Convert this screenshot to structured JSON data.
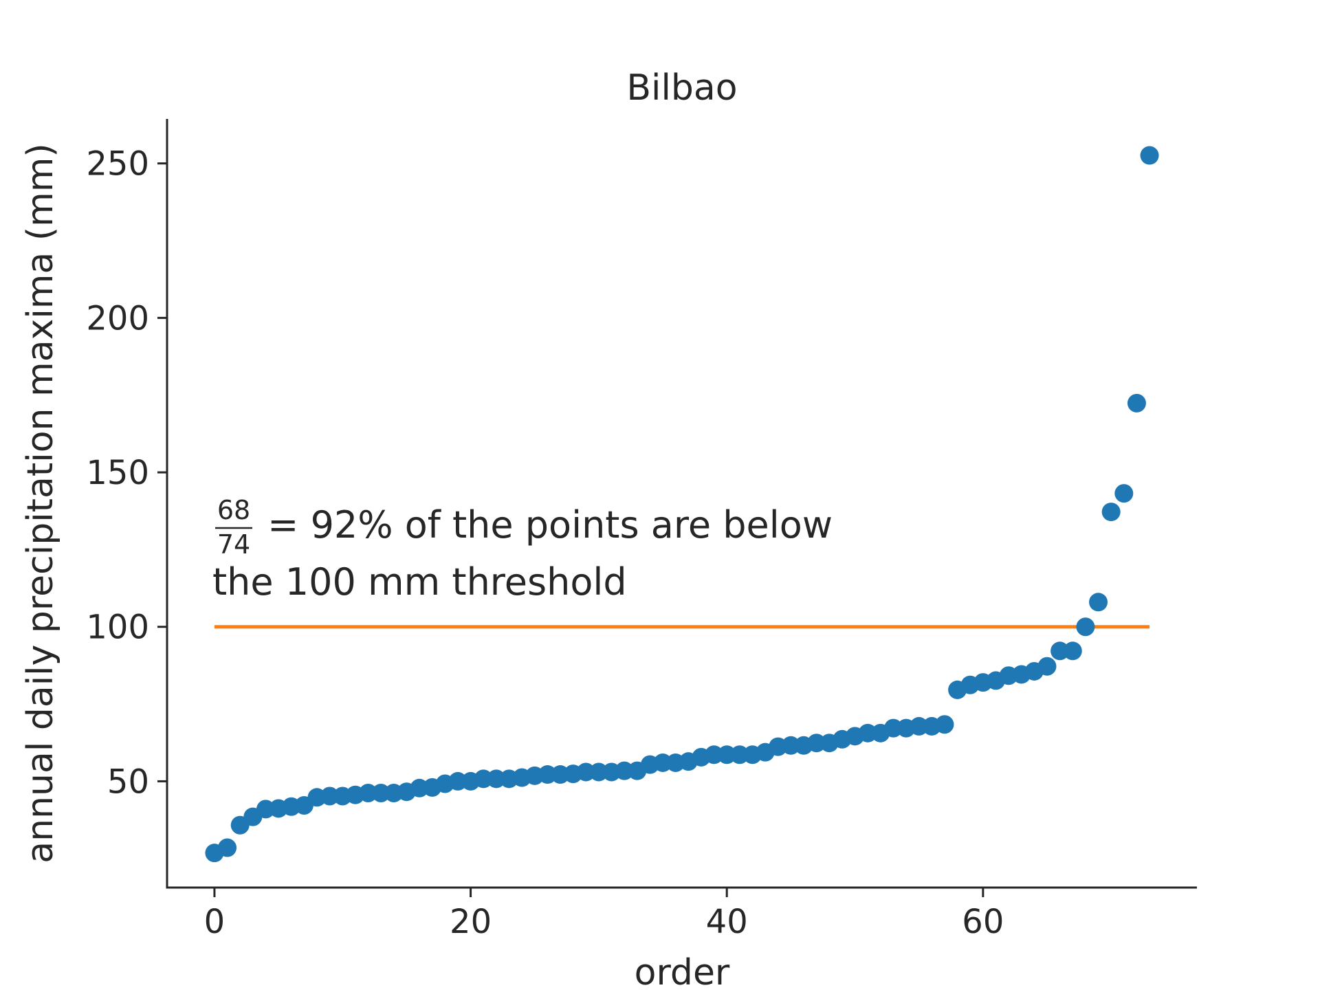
{
  "chart_data": {
    "type": "scatter",
    "title": "Bilbao",
    "xlabel": "order",
    "ylabel": "annual daily precipitation maxima (mm)",
    "xlim": [
      -3.7,
      76.7
    ],
    "ylim": [
      15.6,
      264.4
    ],
    "x_ticks": [
      {
        "value": 0,
        "label": "0"
      },
      {
        "value": 20,
        "label": "20"
      },
      {
        "value": 40,
        "label": "40"
      },
      {
        "value": 60,
        "label": "60"
      }
    ],
    "y_ticks": [
      {
        "value": 50,
        "label": "50"
      },
      {
        "value": 100,
        "label": "100"
      },
      {
        "value": 150,
        "label": "150"
      },
      {
        "value": 200,
        "label": "200"
      },
      {
        "value": 250,
        "label": "250"
      }
    ],
    "grid": false,
    "series": [
      {
        "color": "#1f77b4",
        "x": [
          0,
          1,
          2,
          3,
          4,
          5,
          6,
          7,
          8,
          9,
          10,
          11,
          12,
          13,
          14,
          15,
          16,
          17,
          18,
          19,
          20,
          21,
          22,
          23,
          24,
          25,
          26,
          27,
          28,
          29,
          30,
          31,
          32,
          33,
          34,
          35,
          36,
          37,
          38,
          39,
          40,
          41,
          42,
          43,
          44,
          45,
          46,
          47,
          48,
          49,
          50,
          51,
          52,
          53,
          54,
          55,
          56,
          57,
          58,
          59,
          60,
          61,
          62,
          63,
          64,
          65,
          66,
          67,
          68,
          69,
          70,
          71,
          72,
          73
        ],
        "y": [
          26.8,
          28.5,
          35.8,
          38.5,
          41.0,
          41.2,
          41.8,
          42.2,
          44.8,
          45.2,
          45.2,
          45.6,
          46.2,
          46.2,
          46.2,
          46.6,
          47.8,
          48.0,
          49.2,
          50.0,
          50.0,
          50.8,
          50.8,
          50.8,
          51.2,
          51.8,
          52.2,
          52.2,
          52.4,
          53.0,
          53.0,
          53.0,
          53.4,
          53.4,
          55.4,
          56.0,
          56.0,
          56.4,
          57.8,
          58.6,
          58.6,
          58.6,
          58.6,
          59.4,
          61.2,
          61.6,
          61.6,
          62.4,
          62.4,
          63.6,
          64.6,
          65.6,
          65.6,
          67.2,
          67.2,
          67.8,
          67.8,
          68.4,
          79.6,
          81.2,
          82.0,
          82.6,
          84.2,
          84.6,
          85.6,
          87.2,
          92.2,
          92.2,
          100.0,
          108.0,
          137.2,
          143.2,
          172.4,
          252.6
        ]
      }
    ],
    "threshold_line": {
      "y": 100,
      "x": [
        0,
        73
      ],
      "color": "#ff7f0e"
    },
    "annotation": {
      "numerator": "68",
      "denominator": "74",
      "line1": " = 92% of the points are below",
      "line2": "the 100 mm threshold"
    }
  }
}
